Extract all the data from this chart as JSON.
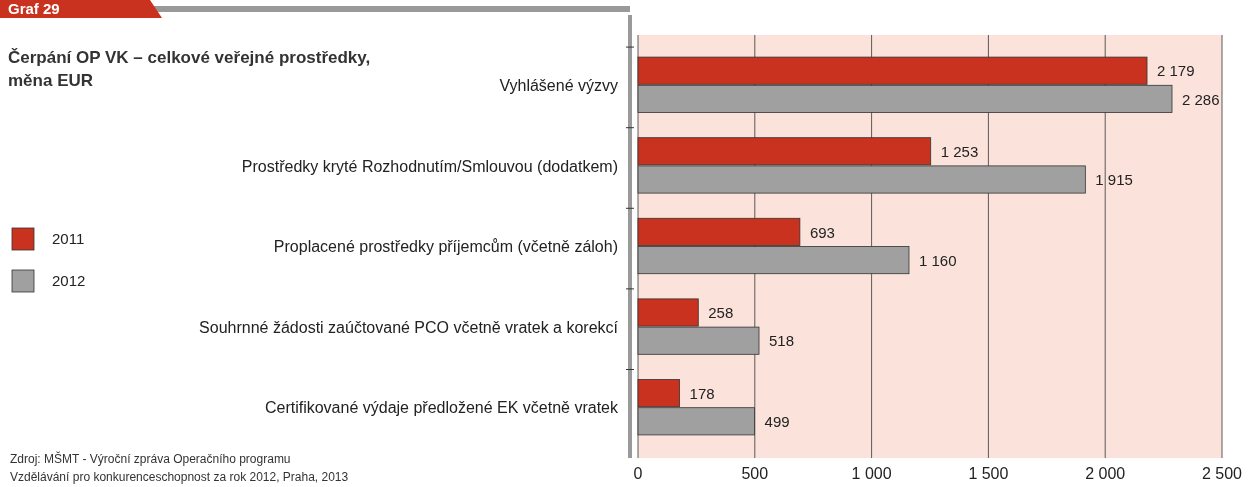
{
  "chart_data": {
    "type": "bar",
    "orientation": "horizontal",
    "title": "Čerpání OP VK – celkové veřejné prostředky, měna EUR",
    "categories": [
      "Vyhlášené výzvy",
      "Prostředky kryté Rozhodnutím/Smlouvou (dodatkem)",
      "Proplacené prostředky příjemcům (včetně záloh)",
      "Souhrnné žádosti zaúčtované PCO včetně vratek a korekcí",
      "Certifikované výdaje předložené EK včetně vratek"
    ],
    "series": [
      {
        "name": "2011",
        "color": "#c8321e",
        "values": [
          2179,
          1253,
          693,
          258,
          178
        ],
        "value_labels": [
          "2 179",
          "1 253",
          "693",
          "258",
          "178"
        ]
      },
      {
        "name": "2012",
        "color": "#a0a0a0",
        "values": [
          2286,
          1915,
          1160,
          518,
          499
        ],
        "value_labels": [
          "2 286",
          "1 915",
          "1 160",
          "518",
          "499"
        ]
      }
    ],
    "xlim": [
      0,
      2500
    ],
    "xticks": [
      0,
      500,
      {
        "value": 1000,
        "label": "1 000"
      },
      {
        "value": 1500,
        "label": "1 500"
      },
      {
        "value": 2000,
        "label": "2 000"
      },
      {
        "value": 2500,
        "label": "2 500"
      }
    ],
    "grid": "x",
    "legend": "left",
    "annotations": [
      "Graf 29",
      "Zdroj: MŠMT - Výroční zpráva Operačního programu Vzdělávání pro konkurenceschopnost za rok 2012, Praha, 2013"
    ]
  }
}
